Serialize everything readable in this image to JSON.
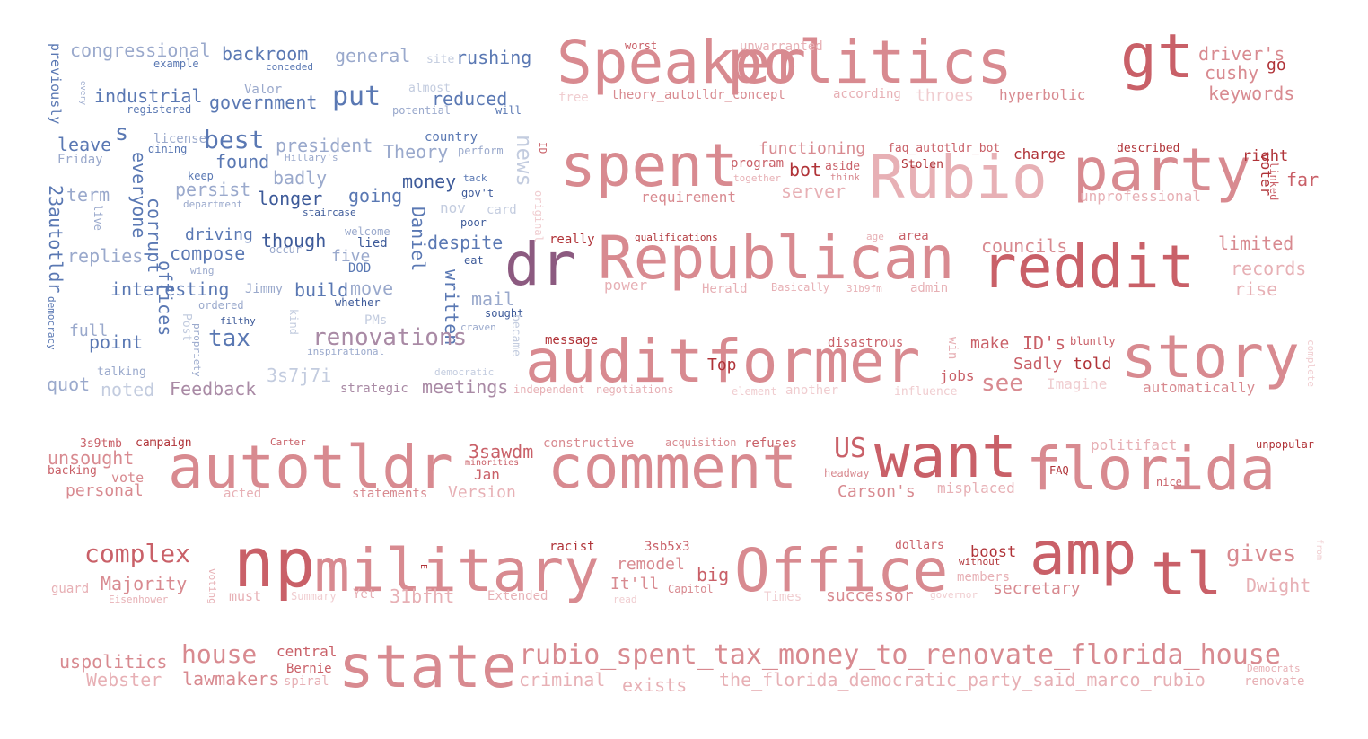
{
  "palette": {
    "blue_dark": "#3d5a99",
    "blue": "#5a78b3",
    "blue_light": "#9aa9cc",
    "blue_pale": "#c3ccdf",
    "purple": "#8c5a80",
    "mauve": "#a98aa5",
    "red_dark": "#b03338",
    "red": "#c96068",
    "pink": "#d88a90",
    "pink_light": "#e7b0b5",
    "pink_pale": "#f0cdd0"
  },
  "words": [
    {
      "t": "congressional"
    },
    {
      "t": "backroom"
    },
    {
      "t": "general"
    },
    {
      "t": "site"
    },
    {
      "t": "rushing"
    },
    {
      "t": "example"
    },
    {
      "t": "conceded"
    },
    {
      "t": "previously"
    },
    {
      "t": "industrial"
    },
    {
      "t": "Valor"
    },
    {
      "t": "put"
    },
    {
      "t": "almost"
    },
    {
      "t": "reduced"
    },
    {
      "t": "registered"
    },
    {
      "t": "government"
    },
    {
      "t": "potential"
    },
    {
      "t": "will"
    },
    {
      "t": "every"
    },
    {
      "t": "s"
    },
    {
      "t": "license"
    },
    {
      "t": "best"
    },
    {
      "t": "president"
    },
    {
      "t": "country"
    },
    {
      "t": "leave"
    },
    {
      "t": "dining"
    },
    {
      "t": "Hillary's"
    },
    {
      "t": "Theory"
    },
    {
      "t": "perform"
    },
    {
      "t": "Friday"
    },
    {
      "t": "found"
    },
    {
      "t": "ID"
    },
    {
      "t": "everyone"
    },
    {
      "t": "badly"
    },
    {
      "t": "money"
    },
    {
      "t": "news"
    },
    {
      "t": "keep"
    },
    {
      "t": "persist"
    },
    {
      "t": "tack"
    },
    {
      "t": "term"
    },
    {
      "t": "longer"
    },
    {
      "t": "going"
    },
    {
      "t": "gov't"
    },
    {
      "t": "department"
    },
    {
      "t": "staircase"
    },
    {
      "t": "nov"
    },
    {
      "t": "card"
    },
    {
      "t": "original"
    },
    {
      "t": "23autotldr"
    },
    {
      "t": "corrupt"
    },
    {
      "t": "live"
    },
    {
      "t": "Daniel"
    },
    {
      "t": "poor"
    },
    {
      "t": "driving"
    },
    {
      "t": "though"
    },
    {
      "t": "welcome"
    },
    {
      "t": "lied"
    },
    {
      "t": "despite"
    },
    {
      "t": "replies"
    },
    {
      "t": "compose"
    },
    {
      "t": "occur"
    },
    {
      "t": "five"
    },
    {
      "t": "eat"
    },
    {
      "t": "wing"
    },
    {
      "t": "DOD"
    },
    {
      "t": "offices"
    },
    {
      "t": "interesting"
    },
    {
      "t": "Jimmy"
    },
    {
      "t": "build"
    },
    {
      "t": "move"
    },
    {
      "t": "written"
    },
    {
      "t": "mail"
    },
    {
      "t": "ordered"
    },
    {
      "t": "whether"
    },
    {
      "t": "democracy"
    },
    {
      "t": "sought"
    },
    {
      "t": "filthy"
    },
    {
      "t": "PMs"
    },
    {
      "t": "full"
    },
    {
      "t": "kind"
    },
    {
      "t": "tax"
    },
    {
      "t": "Post"
    },
    {
      "t": "renovations"
    },
    {
      "t": "craven"
    },
    {
      "t": "point"
    },
    {
      "t": "inspirational"
    },
    {
      "t": "became"
    },
    {
      "t": "propriety"
    },
    {
      "t": "talking"
    },
    {
      "t": "democratic"
    },
    {
      "t": "3s7j7i"
    },
    {
      "t": "quot"
    },
    {
      "t": "noted"
    },
    {
      "t": "Feedback"
    },
    {
      "t": "strategic"
    },
    {
      "t": "meetings"
    },
    {
      "t": "Speaker"
    },
    {
      "t": "politics"
    },
    {
      "t": "gt"
    },
    {
      "t": "worst"
    },
    {
      "t": "unwarranted"
    },
    {
      "t": "driver's"
    },
    {
      "t": "go"
    },
    {
      "t": "cushy"
    },
    {
      "t": "theory_autotldr_concept"
    },
    {
      "t": "free"
    },
    {
      "t": "according"
    },
    {
      "t": "throes"
    },
    {
      "t": "hyperbolic"
    },
    {
      "t": "keywords"
    },
    {
      "t": "spent"
    },
    {
      "t": "Rubio"
    },
    {
      "t": "party"
    },
    {
      "t": "functioning"
    },
    {
      "t": "faq_autotldr_bot"
    },
    {
      "t": "described"
    },
    {
      "t": "charge"
    },
    {
      "t": "right"
    },
    {
      "t": "program"
    },
    {
      "t": "bot"
    },
    {
      "t": "aside"
    },
    {
      "t": "Stolen"
    },
    {
      "t": "together"
    },
    {
      "t": "think"
    },
    {
      "t": "voter"
    },
    {
      "t": "linked"
    },
    {
      "t": "far"
    },
    {
      "t": "server"
    },
    {
      "t": "requirement"
    },
    {
      "t": "unprofessional"
    },
    {
      "t": "dr"
    },
    {
      "t": "Republican"
    },
    {
      "t": "reddit"
    },
    {
      "t": "really"
    },
    {
      "t": "qualifications"
    },
    {
      "t": "age"
    },
    {
      "t": "area"
    },
    {
      "t": "councils"
    },
    {
      "t": "limited"
    },
    {
      "t": "records"
    },
    {
      "t": "power"
    },
    {
      "t": "Herald"
    },
    {
      "t": "Basically"
    },
    {
      "t": "31b9fm"
    },
    {
      "t": "admin"
    },
    {
      "t": "rise"
    },
    {
      "t": "audit"
    },
    {
      "t": "former"
    },
    {
      "t": "story"
    },
    {
      "t": "message"
    },
    {
      "t": "disastrous"
    },
    {
      "t": "win"
    },
    {
      "t": "make"
    },
    {
      "t": "ID's"
    },
    {
      "t": "bluntly"
    },
    {
      "t": "Top"
    },
    {
      "t": "Sadly"
    },
    {
      "t": "told"
    },
    {
      "t": "jobs"
    },
    {
      "t": "see"
    },
    {
      "t": "Imagine"
    },
    {
      "t": "independent"
    },
    {
      "t": "negotiations"
    },
    {
      "t": "element"
    },
    {
      "t": "another"
    },
    {
      "t": "influence"
    },
    {
      "t": "automatically"
    },
    {
      "t": "complete"
    },
    {
      "t": "3s9tmb"
    },
    {
      "t": "campaign"
    },
    {
      "t": "Carter"
    },
    {
      "t": "constructive"
    },
    {
      "t": "acquisition"
    },
    {
      "t": "refuses"
    },
    {
      "t": "politifact"
    },
    {
      "t": "unpopular"
    },
    {
      "t": "unsought"
    },
    {
      "t": "backing"
    },
    {
      "t": "minorities"
    },
    {
      "t": "3sawdm"
    },
    {
      "t": "US"
    },
    {
      "t": "FAQ"
    },
    {
      "t": "vote"
    },
    {
      "t": "Jan"
    },
    {
      "t": "headway"
    },
    {
      "t": "nice"
    },
    {
      "t": "personal"
    },
    {
      "t": "acted"
    },
    {
      "t": "statements"
    },
    {
      "t": "Version"
    },
    {
      "t": "Carson's"
    },
    {
      "t": "misplaced"
    },
    {
      "t": "autotldr"
    },
    {
      "t": "comment"
    },
    {
      "t": "want"
    },
    {
      "t": "florida"
    },
    {
      "t": "complex"
    },
    {
      "t": "np"
    },
    {
      "t": "military"
    },
    {
      "t": "Office"
    },
    {
      "t": "amp"
    },
    {
      "t": "tl"
    },
    {
      "t": "racist"
    },
    {
      "t": "3sb5x3"
    },
    {
      "t": "dollars"
    },
    {
      "t": "boost"
    },
    {
      "t": "gives"
    },
    {
      "t": "without"
    },
    {
      "t": "from"
    },
    {
      "t": "remodel"
    },
    {
      "t": "big"
    },
    {
      "t": "members"
    },
    {
      "t": "Majority"
    },
    {
      "t": "voting"
    },
    {
      "t": "It'll"
    },
    {
      "t": "Capitol"
    },
    {
      "t": "secretary"
    },
    {
      "t": "Dwight"
    },
    {
      "t": "guard"
    },
    {
      "t": "E"
    },
    {
      "t": "Eisenhower"
    },
    {
      "t": "must"
    },
    {
      "t": "Summary"
    },
    {
      "t": "Yet"
    },
    {
      "t": "31bfht"
    },
    {
      "t": "Extended"
    },
    {
      "t": "read"
    },
    {
      "t": "Times"
    },
    {
      "t": "successor"
    },
    {
      "t": "governor"
    },
    {
      "t": "uspolitics"
    },
    {
      "t": "house"
    },
    {
      "t": "central"
    },
    {
      "t": "state"
    },
    {
      "t": "rubio_spent_tax_money_to_renovate_florida_house"
    },
    {
      "t": "Bernie"
    },
    {
      "t": "Democrats"
    },
    {
      "t": "Webster"
    },
    {
      "t": "lawmakers"
    },
    {
      "t": "spiral"
    },
    {
      "t": "criminal"
    },
    {
      "t": "exists"
    },
    {
      "t": "the_florida_democratic_party_said_marco_rubio"
    },
    {
      "t": "renovate"
    }
  ]
}
